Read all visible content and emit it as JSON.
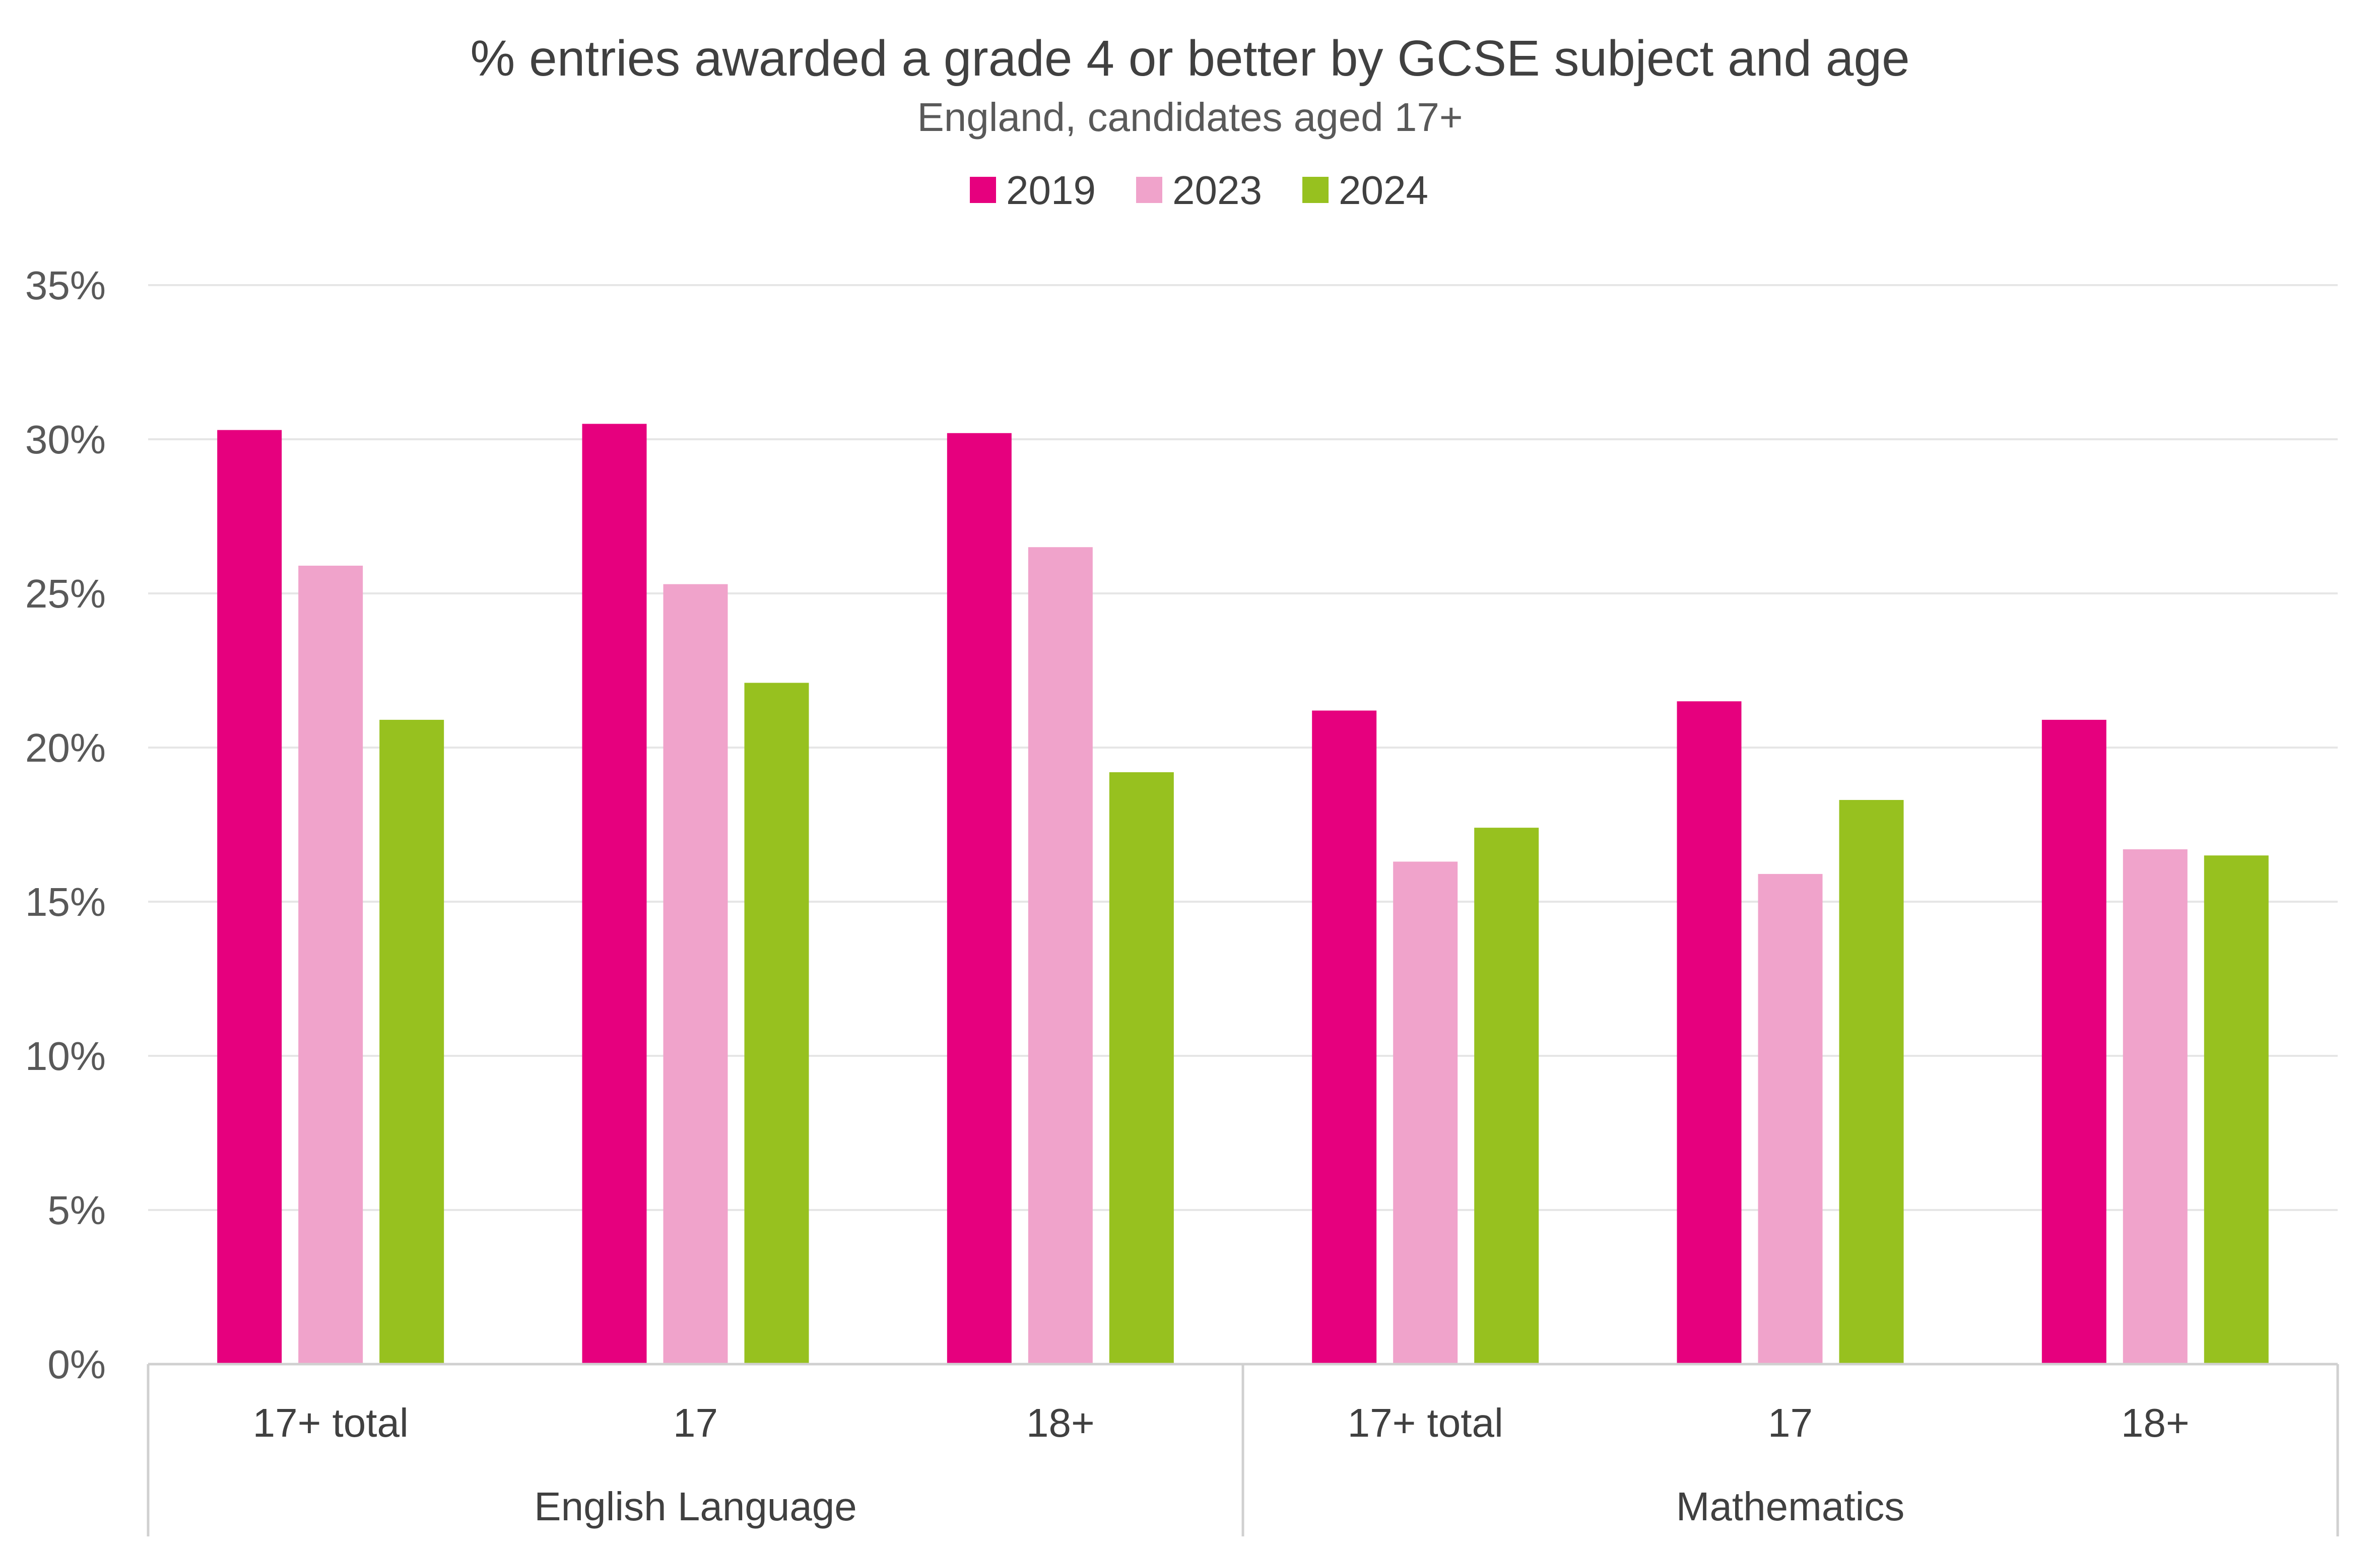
{
  "chart_data": {
    "type": "bar",
    "title": "% entries awarded a grade 4 or better by GCSE subject and age",
    "subtitle": "England, candidates aged 17+",
    "xlabel": "",
    "ylabel": "",
    "ylim": [
      0,
      0.35
    ],
    "yticks": [
      0,
      0.05,
      0.1,
      0.15,
      0.2,
      0.25,
      0.3,
      0.35
    ],
    "ytick_labels": [
      "0%",
      "5%",
      "10%",
      "15%",
      "20%",
      "25%",
      "30%",
      "35%"
    ],
    "grid": true,
    "legend": "top-center",
    "groups": [
      {
        "name": "English Language",
        "categories": [
          "17+ total",
          "17",
          "18+"
        ]
      },
      {
        "name": "Mathematics",
        "categories": [
          "17+ total",
          "17",
          "18+"
        ]
      }
    ],
    "categories": [
      "17+ total",
      "17",
      "18+",
      "17+ total",
      "17",
      "18+"
    ],
    "series": [
      {
        "name": "2019",
        "color": "#E6007E",
        "values": [
          0.303,
          0.305,
          0.302,
          0.212,
          0.215,
          0.209
        ]
      },
      {
        "name": "2023",
        "color": "#F0A3CB",
        "values": [
          0.259,
          0.253,
          0.265,
          0.163,
          0.159,
          0.167
        ]
      },
      {
        "name": "2024",
        "color": "#97C11F",
        "values": [
          0.209,
          0.221,
          0.192,
          0.174,
          0.183,
          0.165
        ]
      }
    ]
  }
}
